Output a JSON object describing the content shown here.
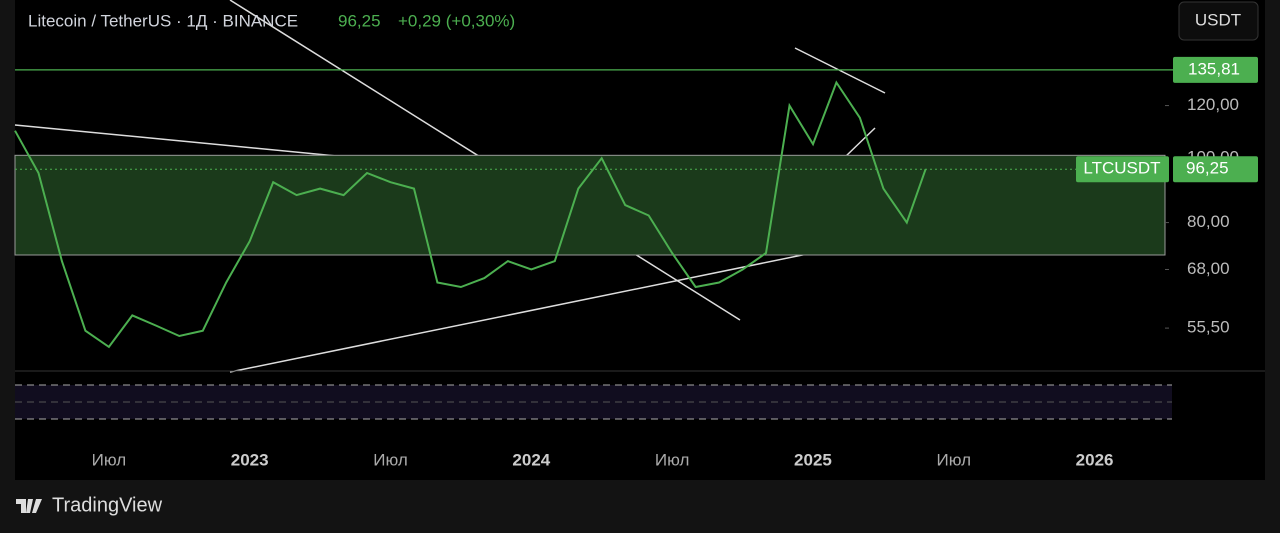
{
  "header": {
    "symbol": "Litecoin / TetherUS · 1Д · BINANCE",
    "price": "96,25",
    "change": "+0,29 (+0,30%)",
    "currency_button": "USDT",
    "brand": "TradingView"
  },
  "chart_data": {
    "type": "line",
    "log_scale": true,
    "series": [
      {
        "name": "LTCUSDT",
        "color": "#4caf50",
        "x": [
          2,
          3,
          4,
          5,
          6,
          7,
          8,
          9,
          10,
          11,
          12,
          13,
          14,
          15,
          16,
          17,
          18,
          19,
          20,
          21,
          22,
          23,
          24,
          25,
          26,
          27,
          28,
          29,
          30,
          31,
          32,
          33,
          34,
          35,
          36,
          37,
          38,
          39,
          40,
          40.8
        ],
        "values": [
          110,
          95,
          70,
          55,
          52,
          58,
          56,
          54,
          55,
          65,
          75,
          92,
          88,
          90,
          88,
          95,
          92,
          90,
          65,
          64,
          66,
          70,
          68,
          70,
          90,
          100,
          85,
          82,
          72,
          64,
          65,
          68,
          72,
          120,
          105,
          130,
          115,
          90,
          80,
          96.25
        ]
      }
    ],
    "xlim": [
      2,
      51
    ],
    "xticks": [
      {
        "value": 6,
        "label": "Июл"
      },
      {
        "value": 12,
        "label": "2023"
      },
      {
        "value": 18,
        "label": "Июл"
      },
      {
        "value": 24,
        "label": "2024"
      },
      {
        "value": 30,
        "label": "Июл"
      },
      {
        "value": 36,
        "label": "2025"
      },
      {
        "value": 42,
        "label": "Июл"
      },
      {
        "value": 48,
        "label": "2026"
      }
    ],
    "ylim": [
      48,
      173
    ],
    "yticks": [
      {
        "value": 55.5,
        "label": "55,50"
      },
      {
        "value": 68,
        "label": "68,00"
      },
      {
        "value": 80,
        "label": "80,00"
      },
      {
        "value": 100,
        "label": "100,00"
      },
      {
        "value": 120,
        "label": "120,00"
      }
    ],
    "zone": [
      71.5,
      101
    ],
    "level": {
      "value": 135.81,
      "label": "135,81"
    },
    "price_line": {
      "value": 96.25,
      "label": "96,25"
    }
  }
}
